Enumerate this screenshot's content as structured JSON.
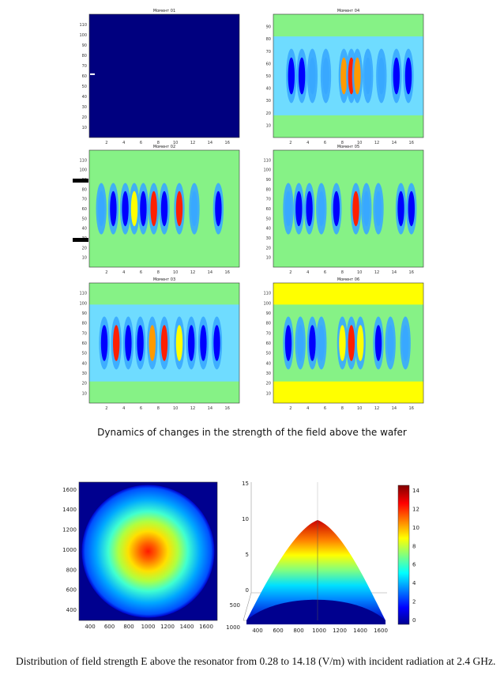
{
  "panels": [
    {
      "title": "Момент 01",
      "xticks": [
        "2",
        "4",
        "6",
        "8",
        "10",
        "12",
        "14",
        "16"
      ],
      "yticks": [
        "110",
        "100",
        "90",
        "80",
        "70",
        "60",
        "50",
        "40",
        "30",
        "20",
        "10"
      ],
      "style": "dark"
    },
    {
      "title": "Момент 04",
      "xticks": [
        "2",
        "4",
        "6",
        "8",
        "10",
        "12",
        "14",
        "16"
      ],
      "yticks": [
        "90",
        "80",
        "70",
        "60",
        "50",
        "40",
        "30",
        "20",
        "10"
      ],
      "style": "bands-a"
    },
    {
      "title": "Момент 02",
      "xticks": [
        "2",
        "4",
        "6",
        "8",
        "10",
        "12",
        "14",
        "16"
      ],
      "yticks": [
        "110",
        "100",
        "90",
        "80",
        "70",
        "60",
        "50",
        "40",
        "30",
        "20",
        "10"
      ],
      "style": "bands-b"
    },
    {
      "title": "Момент 05",
      "xticks": [
        "2",
        "4",
        "6",
        "8",
        "10",
        "12",
        "14",
        "16"
      ],
      "yticks": [
        "110",
        "100",
        "90",
        "80",
        "70",
        "60",
        "50",
        "40",
        "30",
        "20",
        "10"
      ],
      "style": "bands-c"
    },
    {
      "title": "Момент 03",
      "xticks": [
        "2",
        "4",
        "6",
        "8",
        "10",
        "12",
        "14",
        "16"
      ],
      "yticks": [
        "110",
        "100",
        "90",
        "80",
        "70",
        "60",
        "50",
        "40",
        "30",
        "20",
        "10"
      ],
      "style": "bands-d"
    },
    {
      "title": "Момент 06",
      "xticks": [
        "2",
        "4",
        "6",
        "8",
        "10",
        "12",
        "14",
        "16"
      ],
      "yticks": [
        "110",
        "100",
        "90",
        "80",
        "70",
        "60",
        "50",
        "40",
        "30",
        "20",
        "10"
      ],
      "style": "bands-e"
    }
  ],
  "caption_top": "Dynamics of changes in the strength of the field above the wafer",
  "heatmap2d": {
    "xticks": [
      "400",
      "600",
      "800",
      "1000",
      "1200",
      "1400",
      "1600"
    ],
    "yticks": [
      "1600",
      "1400",
      "1200",
      "1000",
      "800",
      "600",
      "400"
    ]
  },
  "surface3d": {
    "zticks": [
      "15",
      "10",
      "5",
      "0"
    ],
    "xticks": [
      "400",
      "600",
      "800",
      "1000",
      "1200",
      "1400",
      "1600"
    ],
    "yticks": [
      "500",
      "1000"
    ]
  },
  "colorbar": {
    "ticks": [
      "14",
      "12",
      "10",
      "8",
      "6",
      "4",
      "2",
      "0"
    ],
    "range": [
      0,
      14.18
    ]
  },
  "caption_bottom": "Distribution of field strength E above the resonator from 0.28 to 14.18 (V/m) with incident radiation at 2.4 GHz.",
  "colors": {
    "dark_blue": "#00007f",
    "blue": "#0000ff",
    "light_blue": "#38a8ff",
    "cyan": "#6fdcff",
    "green": "#86f286",
    "yellow": "#ffff00",
    "orange": "#ff9a00",
    "red": "#ff2000",
    "dark_red": "#8b0000"
  }
}
